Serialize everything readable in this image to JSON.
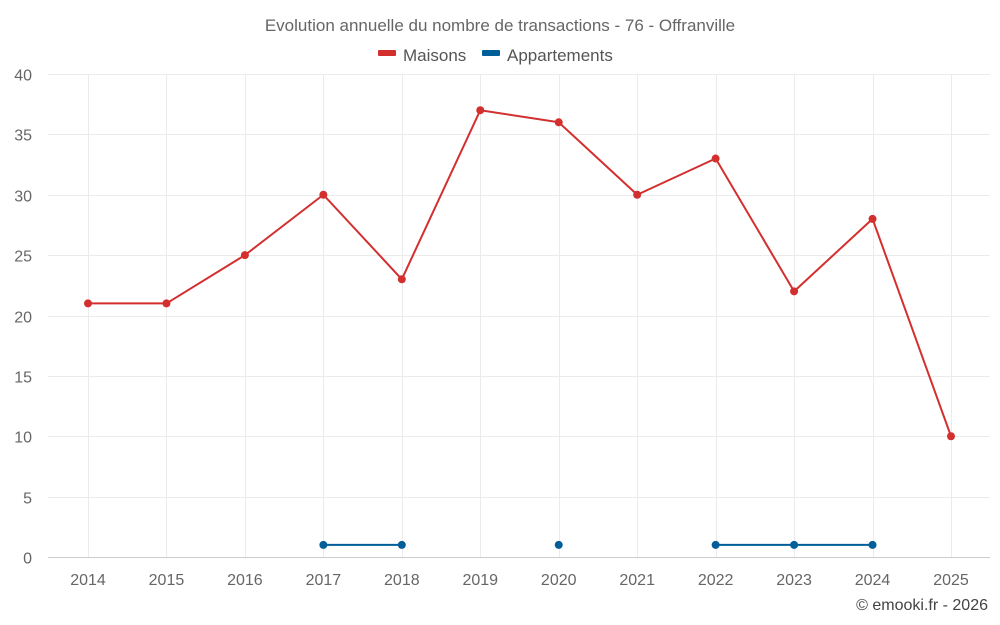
{
  "chart_data": {
    "type": "line",
    "title": "Evolution annuelle du nombre de transactions - 76 - Offranville",
    "x": [
      "2014",
      "2015",
      "2016",
      "2017",
      "2018",
      "2019",
      "2020",
      "2021",
      "2022",
      "2023",
      "2024",
      "2025"
    ],
    "ylim": [
      0,
      40
    ],
    "yticks": [
      "0",
      "5",
      "10",
      "15",
      "20",
      "25",
      "30",
      "35",
      "40"
    ],
    "grid": true,
    "legend_position": "top-center",
    "series": [
      {
        "name": "Maisons",
        "color": "#d32f2f",
        "values": [
          21,
          21,
          25,
          30,
          23,
          37,
          36,
          30,
          33,
          22,
          28,
          10
        ]
      },
      {
        "name": "Appartements",
        "color": "#005f99",
        "values": [
          null,
          null,
          null,
          1,
          1,
          null,
          1,
          null,
          1,
          1,
          1,
          null
        ]
      }
    ]
  },
  "credit": "© emooki.fr - 2026"
}
